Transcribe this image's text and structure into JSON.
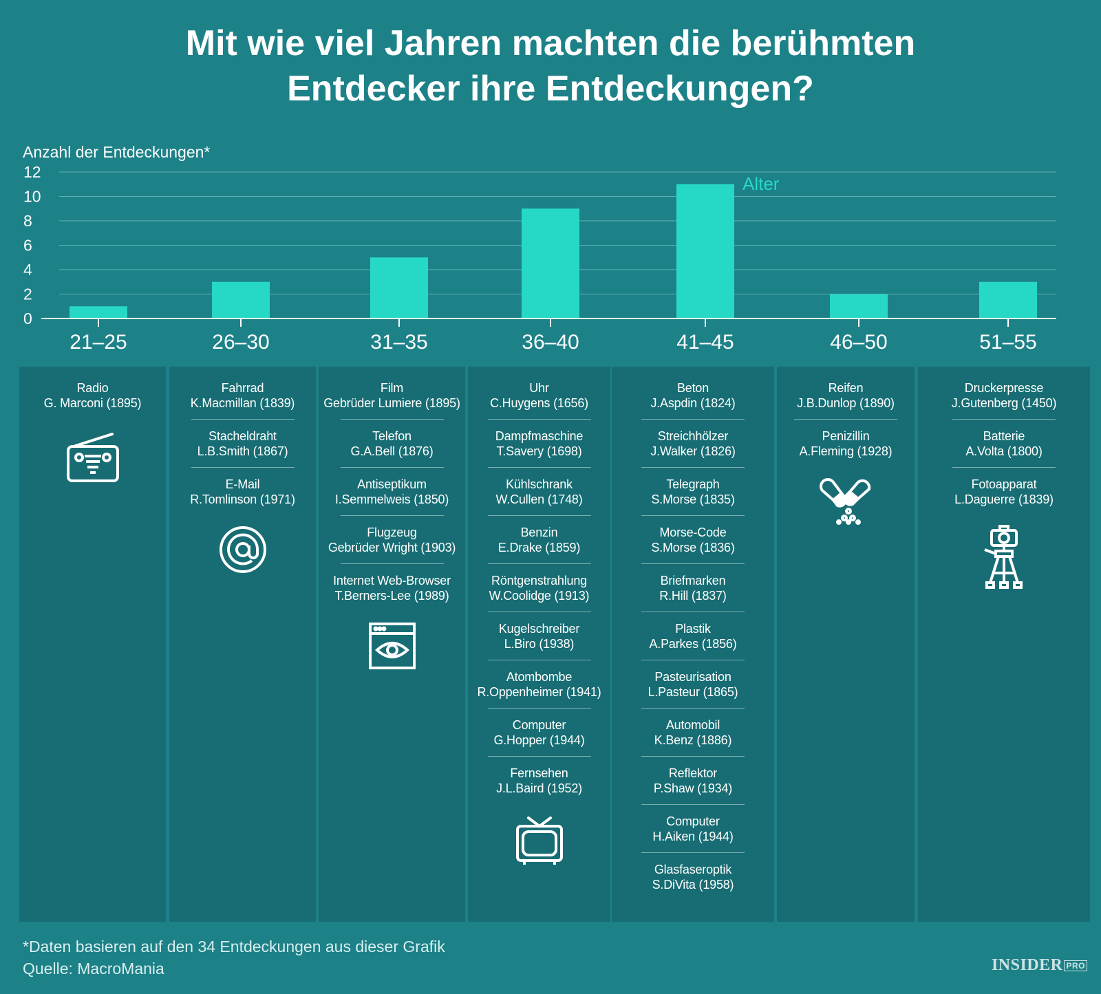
{
  "title": {
    "line1": "Mit wie viel Jahren machten die berühmten",
    "line2": "Entdecker ihre Entdeckungen?"
  },
  "colors": {
    "background": "#1d8188",
    "column": "#176d73",
    "bar": "#26d9c7",
    "grid": "#5fb3b4"
  },
  "chart_data": {
    "type": "bar",
    "title": "Mit wie viel Jahren machten die berühmten Entdecker ihre Entdeckungen?",
    "ylabel": "Anzahl der Entdeckungen*",
    "xlabel": "Alter",
    "categories": [
      "21–25",
      "26–30",
      "31–35",
      "36–40",
      "41–45",
      "46–50",
      "51–55"
    ],
    "values": [
      1,
      3,
      5,
      9,
      11,
      2,
      3
    ],
    "ylim": [
      0,
      12
    ],
    "yticks": [
      0,
      2,
      4,
      6,
      8,
      10,
      12
    ],
    "grid": true
  },
  "columns": [
    {
      "icon": "radio-icon",
      "entries": [
        {
          "name": "Radio",
          "person": "G. Marconi (1895)"
        }
      ]
    },
    {
      "icon": "at-sign-icon",
      "entries": [
        {
          "name": "Fahrrad",
          "person": "K.Macmillan (1839)"
        },
        {
          "name": "Stacheldraht",
          "person": "L.B.Smith (1867)"
        },
        {
          "name": "E-Mail",
          "person": "R.Tomlinson (1971)"
        }
      ]
    },
    {
      "icon": "browser-eye-icon",
      "entries": [
        {
          "name": "Film",
          "person": "Gebrüder Lumiere (1895)"
        },
        {
          "name": "Telefon",
          "person": "G.A.Bell (1876)"
        },
        {
          "name": "Antiseptikum",
          "person": "I.Semmelweis (1850)"
        },
        {
          "name": "Flugzeug",
          "person": "Gebrüder Wright (1903)"
        },
        {
          "name": "Internet Web-Browser",
          "person": "T.Berners-Lee (1989)"
        }
      ]
    },
    {
      "icon": "television-icon",
      "entries": [
        {
          "name": "Uhr",
          "person": "C.Huygens (1656)"
        },
        {
          "name": "Dampfmaschine",
          "person": "T.Savery (1698)"
        },
        {
          "name": "Kühlschrank",
          "person": "W.Cullen (1748)"
        },
        {
          "name": "Benzin",
          "person": "E.Drake (1859)"
        },
        {
          "name": "Röntgenstrahlung",
          "person": "W.Coolidge (1913)"
        },
        {
          "name": "Kugelschreiber",
          "person": "L.Biro (1938)"
        },
        {
          "name": "Atombombe",
          "person": "R.Oppenheimer (1941)"
        },
        {
          "name": "Computer",
          "person": "G.Hopper (1944)"
        },
        {
          "name": "Fernsehen",
          "person": "J.L.Baird (1952)"
        }
      ]
    },
    {
      "icon": "none",
      "entries": [
        {
          "name": "Beton",
          "person": "J.Aspdin (1824)"
        },
        {
          "name": "Streichhölzer",
          "person": "J.Walker (1826)"
        },
        {
          "name": "Telegraph",
          "person": "S.Morse (1835)"
        },
        {
          "name": "Morse-Code",
          "person": "S.Morse (1836)"
        },
        {
          "name": "Briefmarken",
          "person": "R.Hill (1837)"
        },
        {
          "name": "Plastik",
          "person": "A.Parkes (1856)"
        },
        {
          "name": "Pasteurisation",
          "person": "L.Pasteur (1865)"
        },
        {
          "name": "Automobil",
          "person": "K.Benz (1886)"
        },
        {
          "name": "Reflektor",
          "person": "P.Shaw (1934)"
        },
        {
          "name": "Computer",
          "person": "H.Aiken (1944)"
        },
        {
          "name": "Glasfaseroptik",
          "person": "S.DiVita (1958)"
        }
      ]
    },
    {
      "icon": "pill-capsule-icon",
      "entries": [
        {
          "name": "Reifen",
          "person": "J.B.Dunlop (1890)"
        },
        {
          "name": "Penizillin",
          "person": "A.Fleming (1928)"
        }
      ]
    },
    {
      "icon": "camera-tripod-icon",
      "entries": [
        {
          "name": "Druckerpresse",
          "person": "J.Gutenberg (1450)"
        },
        {
          "name": "Batterie",
          "person": "A.Volta (1800)"
        },
        {
          "name": "Fotoapparat",
          "person": "L.Daguerre (1839)"
        }
      ]
    }
  ],
  "footnote": {
    "note": "*Daten basieren auf den 34 Entdeckungen aus dieser Grafik",
    "source": "Quelle: MacroMania"
  },
  "brand": {
    "name": "INSIDER",
    "suffix": "PRO"
  }
}
